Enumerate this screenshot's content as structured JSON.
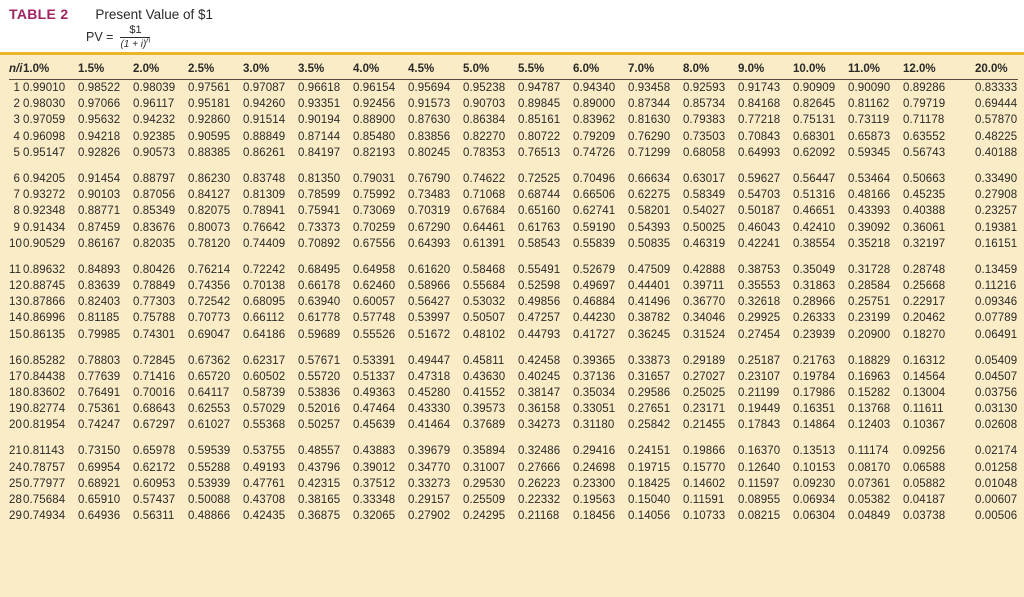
{
  "header": {
    "label": "TABLE 2",
    "title": "Present Value of $1",
    "formula": {
      "lhs": "PV =",
      "numerator": "$1",
      "denominator_base": "(1 + i)",
      "denominator_exponent": "n"
    }
  },
  "colors": {
    "accent_gold": "#E7B62A",
    "label_magenta": "#A32465",
    "table_background": "#F9ECC6",
    "text_dark": "#2B2A28"
  },
  "table": {
    "corner_header": "n/i",
    "rate_headers": [
      "1.0%",
      "1.5%",
      "2.0%",
      "2.5%",
      "3.0%",
      "3.5%",
      "4.0%",
      "4.5%",
      "5.0%",
      "5.5%",
      "6.0%",
      "7.0%",
      "8.0%",
      "9.0%",
      "10.0%",
      "11.0%",
      "12.0%",
      "20.0%"
    ],
    "row_groups": [
      [
        [
          "1",
          "0.99010",
          "0.98522",
          "0.98039",
          "0.97561",
          "0.97087",
          "0.96618",
          "0.96154",
          "0.95694",
          "0.95238",
          "0.94787",
          "0.94340",
          "0.93458",
          "0.92593",
          "0.91743",
          "0.90909",
          "0.90090",
          "0.89286",
          "0.83333"
        ],
        [
          "2",
          "0.98030",
          "0.97066",
          "0.96117",
          "0.95181",
          "0.94260",
          "0.93351",
          "0.92456",
          "0.91573",
          "0.90703",
          "0.89845",
          "0.89000",
          "0.87344",
          "0.85734",
          "0.84168",
          "0.82645",
          "0.81162",
          "0.79719",
          "0.69444"
        ],
        [
          "3",
          "0.97059",
          "0.95632",
          "0.94232",
          "0.92860",
          "0.91514",
          "0.90194",
          "0.88900",
          "0.87630",
          "0.86384",
          "0.85161",
          "0.83962",
          "0.81630",
          "0.79383",
          "0.77218",
          "0.75131",
          "0.73119",
          "0.71178",
          "0.57870"
        ],
        [
          "4",
          "0.96098",
          "0.94218",
          "0.92385",
          "0.90595",
          "0.88849",
          "0.87144",
          "0.85480",
          "0.83856",
          "0.82270",
          "0.80722",
          "0.79209",
          "0.76290",
          "0.73503",
          "0.70843",
          "0.68301",
          "0.65873",
          "0.63552",
          "0.48225"
        ],
        [
          "5",
          "0.95147",
          "0.92826",
          "0.90573",
          "0.88385",
          "0.86261",
          "0.84197",
          "0.82193",
          "0.80245",
          "0.78353",
          "0.76513",
          "0.74726",
          "0.71299",
          "0.68058",
          "0.64993",
          "0.62092",
          "0.59345",
          "0.56743",
          "0.40188"
        ]
      ],
      [
        [
          "6",
          "0.94205",
          "0.91454",
          "0.88797",
          "0.86230",
          "0.83748",
          "0.81350",
          "0.79031",
          "0.76790",
          "0.74622",
          "0.72525",
          "0.70496",
          "0.66634",
          "0.63017",
          "0.59627",
          "0.56447",
          "0.53464",
          "0.50663",
          "0.33490"
        ],
        [
          "7",
          "0.93272",
          "0.90103",
          "0.87056",
          "0.84127",
          "0.81309",
          "0.78599",
          "0.75992",
          "0.73483",
          "0.71068",
          "0.68744",
          "0.66506",
          "0.62275",
          "0.58349",
          "0.54703",
          "0.51316",
          "0.48166",
          "0.45235",
          "0.27908"
        ],
        [
          "8",
          "0.92348",
          "0.88771",
          "0.85349",
          "0.82075",
          "0.78941",
          "0.75941",
          "0.73069",
          "0.70319",
          "0.67684",
          "0.65160",
          "0.62741",
          "0.58201",
          "0.54027",
          "0.50187",
          "0.46651",
          "0.43393",
          "0.40388",
          "0.23257"
        ],
        [
          "9",
          "0.91434",
          "0.87459",
          "0.83676",
          "0.80073",
          "0.76642",
          "0.73373",
          "0.70259",
          "0.67290",
          "0.64461",
          "0.61763",
          "0.59190",
          "0.54393",
          "0.50025",
          "0.46043",
          "0.42410",
          "0.39092",
          "0.36061",
          "0.19381"
        ],
        [
          "10",
          "0.90529",
          "0.86167",
          "0.82035",
          "0.78120",
          "0.74409",
          "0.70892",
          "0.67556",
          "0.64393",
          "0.61391",
          "0.58543",
          "0.55839",
          "0.50835",
          "0.46319",
          "0.42241",
          "0.38554",
          "0.35218",
          "0.32197",
          "0.16151"
        ]
      ],
      [
        [
          "11",
          "0.89632",
          "0.84893",
          "0.80426",
          "0.76214",
          "0.72242",
          "0.68495",
          "0.64958",
          "0.61620",
          "0.58468",
          "0.55491",
          "0.52679",
          "0.47509",
          "0.42888",
          "0.38753",
          "0.35049",
          "0.31728",
          "0.28748",
          "0.13459"
        ],
        [
          "12",
          "0.88745",
          "0.83639",
          "0.78849",
          "0.74356",
          "0.70138",
          "0.66178",
          "0.62460",
          "0.58966",
          "0.55684",
          "0.52598",
          "0.49697",
          "0.44401",
          "0.39711",
          "0.35553",
          "0.31863",
          "0.28584",
          "0.25668",
          "0.11216"
        ],
        [
          "13",
          "0.87866",
          "0.82403",
          "0.77303",
          "0.72542",
          "0.68095",
          "0.63940",
          "0.60057",
          "0.56427",
          "0.53032",
          "0.49856",
          "0.46884",
          "0.41496",
          "0.36770",
          "0.32618",
          "0.28966",
          "0.25751",
          "0.22917",
          "0.09346"
        ],
        [
          "14",
          "0.86996",
          "0.81185",
          "0.75788",
          "0.70773",
          "0.66112",
          "0.61778",
          "0.57748",
          "0.53997",
          "0.50507",
          "0.47257",
          "0.44230",
          "0.38782",
          "0.34046",
          "0.29925",
          "0.26333",
          "0.23199",
          "0.20462",
          "0.07789"
        ],
        [
          "15",
          "0.86135",
          "0.79985",
          "0.74301",
          "0.69047",
          "0.64186",
          "0.59689",
          "0.55526",
          "0.51672",
          "0.48102",
          "0.44793",
          "0.41727",
          "0.36245",
          "0.31524",
          "0.27454",
          "0.23939",
          "0.20900",
          "0.18270",
          "0.06491"
        ]
      ],
      [
        [
          "16",
          "0.85282",
          "0.78803",
          "0.72845",
          "0.67362",
          "0.62317",
          "0.57671",
          "0.53391",
          "0.49447",
          "0.45811",
          "0.42458",
          "0.39365",
          "0.33873",
          "0.29189",
          "0.25187",
          "0.21763",
          "0.18829",
          "0.16312",
          "0.05409"
        ],
        [
          "17",
          "0.84438",
          "0.77639",
          "0.71416",
          "0.65720",
          "0.60502",
          "0.55720",
          "0.51337",
          "0.47318",
          "0.43630",
          "0.40245",
          "0.37136",
          "0.31657",
          "0.27027",
          "0.23107",
          "0.19784",
          "0.16963",
          "0.14564",
          "0.04507"
        ],
        [
          "18",
          "0.83602",
          "0.76491",
          "0.70016",
          "0.64117",
          "0.58739",
          "0.53836",
          "0.49363",
          "0.45280",
          "0.41552",
          "0.38147",
          "0.35034",
          "0.29586",
          "0.25025",
          "0.21199",
          "0.17986",
          "0.15282",
          "0.13004",
          "0.03756"
        ],
        [
          "19",
          "0.82774",
          "0.75361",
          "0.68643",
          "0.62553",
          "0.57029",
          "0.52016",
          "0.47464",
          "0.43330",
          "0.39573",
          "0.36158",
          "0.33051",
          "0.27651",
          "0.23171",
          "0.19449",
          "0.16351",
          "0.13768",
          "0.11611",
          "0.03130"
        ],
        [
          "20",
          "0.81954",
          "0.74247",
          "0.67297",
          "0.61027",
          "0.55368",
          "0.50257",
          "0.45639",
          "0.41464",
          "0.37689",
          "0.34273",
          "0.31180",
          "0.25842",
          "0.21455",
          "0.17843",
          "0.14864",
          "0.12403",
          "0.10367",
          "0.02608"
        ]
      ],
      [
        [
          "21",
          "0.81143",
          "0.73150",
          "0.65978",
          "0.59539",
          "0.53755",
          "0.48557",
          "0.43883",
          "0.39679",
          "0.35894",
          "0.32486",
          "0.29416",
          "0.24151",
          "0.19866",
          "0.16370",
          "0.13513",
          "0.11174",
          "0.09256",
          "0.02174"
        ],
        [
          "24",
          "0.78757",
          "0.69954",
          "0.62172",
          "0.55288",
          "0.49193",
          "0.43796",
          "0.39012",
          "0.34770",
          "0.31007",
          "0.27666",
          "0.24698",
          "0.19715",
          "0.15770",
          "0.12640",
          "0.10153",
          "0.08170",
          "0.06588",
          "0.01258"
        ],
        [
          "25",
          "0.77977",
          "0.68921",
          "0.60953",
          "0.53939",
          "0.47761",
          "0.42315",
          "0.37512",
          "0.33273",
          "0.29530",
          "0.26223",
          "0.23300",
          "0.18425",
          "0.14602",
          "0.11597",
          "0.09230",
          "0.07361",
          "0.05882",
          "0.01048"
        ],
        [
          "28",
          "0.75684",
          "0.65910",
          "0.57437",
          "0.50088",
          "0.43708",
          "0.38165",
          "0.33348",
          "0.29157",
          "0.25509",
          "0.22332",
          "0.19563",
          "0.15040",
          "0.11591",
          "0.08955",
          "0.06934",
          "0.05382",
          "0.04187",
          "0.00607"
        ],
        [
          "29",
          "0.74934",
          "0.64936",
          "0.56311",
          "0.48866",
          "0.42435",
          "0.36875",
          "0.32065",
          "0.27902",
          "0.24295",
          "0.21168",
          "0.18456",
          "0.14056",
          "0.10733",
          "0.08215",
          "0.06304",
          "0.04849",
          "0.03738",
          "0.00506"
        ]
      ]
    ]
  }
}
